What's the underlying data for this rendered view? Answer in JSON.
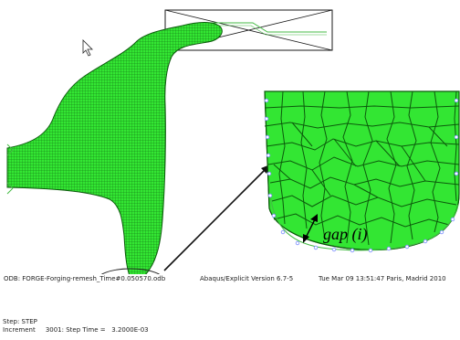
{
  "viewport": {
    "annotation_label": "gap (i)",
    "colors": {
      "mesh_fill": "#33e633",
      "mesh_line": "#0c5a0c",
      "background": "#ffffff",
      "die_outline": "#1a1a1a",
      "die_contact_line": "#44bb44",
      "node_marker": "#7a8cff"
    }
  },
  "status": {
    "odb": "ODB: FORGE-Forging-remesh_Time#0.050570.odb",
    "version": "Abaqus/Explicit Version 6.7-5",
    "datetime": "Tue Mar 09 13:51:47 Paris, Madrid 2010",
    "step": "Step: STEP",
    "increment": "Increment     3001: Step Time =   3.2000E-03"
  }
}
